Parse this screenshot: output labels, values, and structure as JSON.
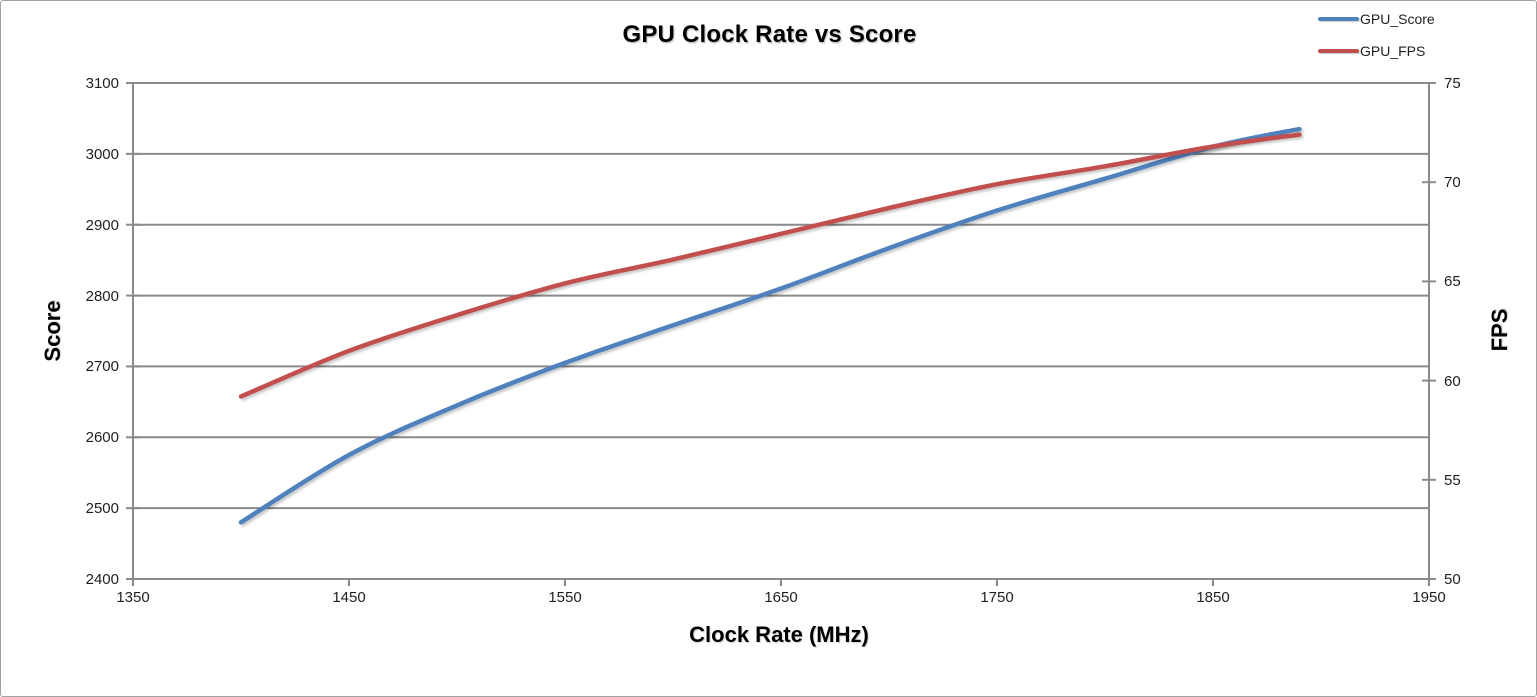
{
  "window": {
    "background_color": "#ffffff",
    "border_color": "#a3a3a3"
  },
  "chart_data": {
    "type": "line",
    "title": "GPU Clock Rate vs Score",
    "xlabel": "Clock Rate (MHz)",
    "ylabel_left": "Score",
    "ylabel_right": "FPS",
    "xlim": [
      1350,
      1950
    ],
    "ylim_left": [
      2400,
      3100
    ],
    "ylim_right": [
      50,
      75
    ],
    "x_ticks": [
      1350,
      1450,
      1550,
      1650,
      1750,
      1850,
      1950
    ],
    "y_ticks_left": [
      2400,
      2500,
      2600,
      2700,
      2800,
      2900,
      3000,
      3100
    ],
    "y_ticks_right": [
      50,
      55,
      60,
      65,
      70,
      75
    ],
    "grid": "horizontal-major-only",
    "gridline_color": "#8a8a8a",
    "axis_line_color": "#8a8a8a",
    "legend_position": "top-right",
    "x": [
      1400,
      1450,
      1500,
      1550,
      1600,
      1650,
      1700,
      1750,
      1800,
      1850,
      1890
    ],
    "series": [
      {
        "name": "GPU_Score",
        "color": "#4F81BD",
        "axis": "left",
        "values": [
          2480,
          2575,
          2645,
          2705,
          2758,
          2810,
          2867,
          2920,
          2965,
          3010,
          3035
        ]
      },
      {
        "name": "GPU_FPS",
        "color": "#C0504D",
        "axis": "right",
        "values": [
          59.2,
          61.5,
          63.3,
          64.9,
          66.1,
          67.4,
          68.7,
          69.9,
          70.8,
          71.8,
          72.4
        ]
      }
    ]
  }
}
